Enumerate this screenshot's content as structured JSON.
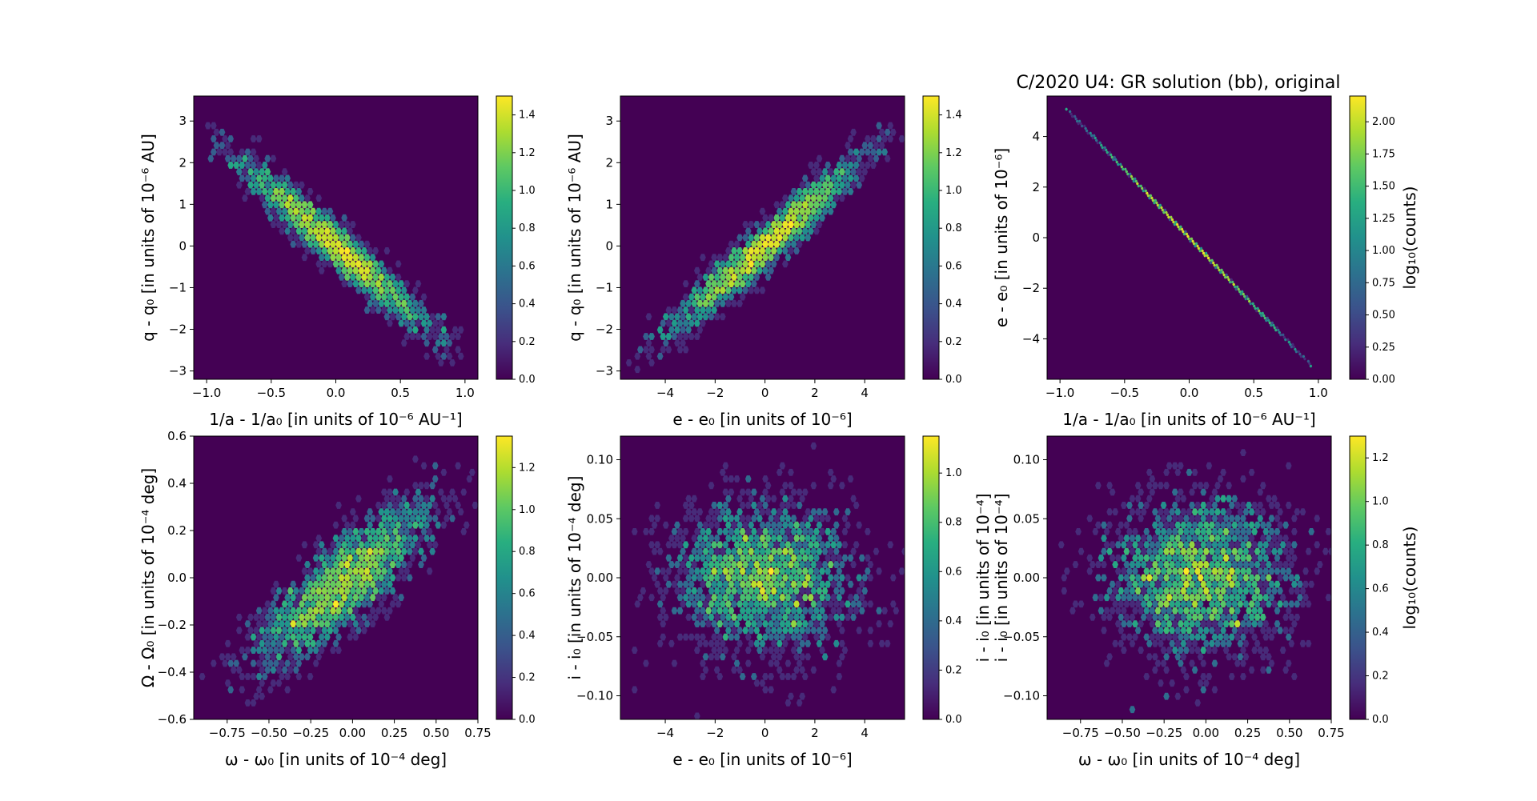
{
  "figure_title": "C/2020 U4: GR solution (bb), original",
  "colors": {
    "background": "#440154",
    "frame": "#000000"
  },
  "chart_data": [
    {
      "type": "heatmap",
      "variant": "hexbin",
      "xlabel": "1/a - 1/a₀ [in units of 10⁻⁶ AU⁻¹]",
      "ylabel": "q - q₀ [in units of 10⁻⁶ AU]",
      "xlim": [
        -1.1,
        1.1
      ],
      "ylim": [
        -3.2,
        3.6
      ],
      "xticks": [
        "−1.0",
        "−0.5",
        "0.0",
        "0.5",
        "1.0"
      ],
      "xtick_values": [
        -1.0,
        -0.5,
        0.0,
        0.5,
        1.0
      ],
      "yticks": [
        "−3",
        "−2",
        "−1",
        "0",
        "1",
        "2",
        "3"
      ],
      "ytick_values": [
        -3,
        -2,
        -1,
        0,
        1,
        2,
        3
      ],
      "colorbar": {
        "min": 0,
        "max": 1.5,
        "label": "",
        "ticks": [
          "0.0",
          "0.2",
          "0.4",
          "0.6",
          "0.8",
          "1.0",
          "1.2",
          "1.4"
        ],
        "tick_values": [
          0,
          0.2,
          0.4,
          0.6,
          0.8,
          1.0,
          1.2,
          1.4
        ]
      },
      "distribution": {
        "shape": "gaussian",
        "center": [
          0,
          0
        ],
        "sigma": [
          0.36,
          1.0
        ],
        "correlation": -0.96,
        "points": 2200,
        "spread_x": 1.0,
        "spread_y": 3.0,
        "seed": 11
      }
    },
    {
      "type": "heatmap",
      "variant": "hexbin",
      "xlabel": "e - e₀ [in units of 10⁻⁶]",
      "ylabel": "q - q₀ [in units of 10⁻⁶ AU]",
      "xlim": [
        -5.8,
        5.6
      ],
      "ylim": [
        -3.2,
        3.6
      ],
      "xticks": [
        "−4",
        "−2",
        "0",
        "2",
        "4"
      ],
      "xtick_values": [
        -4,
        -2,
        0,
        2,
        4
      ],
      "yticks": [
        "−3",
        "−2",
        "−1",
        "0",
        "1",
        "2",
        "3"
      ],
      "ytick_values": [
        -3,
        -2,
        -1,
        0,
        1,
        2,
        3
      ],
      "colorbar": {
        "min": 0,
        "max": 1.5,
        "label": "",
        "ticks": [
          "0.0",
          "0.2",
          "0.4",
          "0.6",
          "0.8",
          "1.0",
          "1.2",
          "1.4"
        ],
        "tick_values": [
          0,
          0.2,
          0.4,
          0.6,
          0.8,
          1.0,
          1.2,
          1.4
        ]
      },
      "distribution": {
        "shape": "gaussian",
        "center": [
          0,
          0
        ],
        "sigma": [
          1.85,
          1.0
        ],
        "correlation": 0.96,
        "points": 2200,
        "spread_x": 5.5,
        "spread_y": 3.0,
        "seed": 23
      }
    },
    {
      "type": "heatmap",
      "variant": "hexbin",
      "title": "C/2020 U4: GR solution (bb), original",
      "xlabel": "1/a - 1/a₀ [in units of 10⁻⁶ AU⁻¹]",
      "ylabel": "e - e₀ [in units of 10⁻⁶]",
      "xlim": [
        -1.1,
        1.1
      ],
      "ylim": [
        -5.6,
        5.6
      ],
      "xticks": [
        "−1.0",
        "−0.5",
        "0.0",
        "0.5",
        "1.0"
      ],
      "xtick_values": [
        -1.0,
        -0.5,
        0.0,
        0.5,
        1.0
      ],
      "yticks": [
        "−4",
        "−2",
        "0",
        "2",
        "4"
      ],
      "ytick_values": [
        -4,
        -2,
        0,
        2,
        4
      ],
      "colorbar": {
        "min": 0,
        "max": 2.2,
        "label": "log₁₀(counts)",
        "ticks": [
          "0.00",
          "0.25",
          "0.50",
          "0.75",
          "1.00",
          "1.25",
          "1.50",
          "1.75",
          "2.00"
        ],
        "tick_values": [
          0,
          0.25,
          0.5,
          0.75,
          1.0,
          1.25,
          1.5,
          1.75,
          2.0
        ]
      },
      "distribution": {
        "shape": "line",
        "from": [
          -0.95,
          5.1
        ],
        "to": [
          0.95,
          -5.1
        ],
        "center_sigma": 0.38,
        "points": 2200,
        "seed": 37
      }
    },
    {
      "type": "heatmap",
      "variant": "hexbin",
      "xlabel": "ω - ω₀ [in units of 10⁻⁴ deg]",
      "ylabel": "Ω - Ω₀ [in units of 10⁻⁴ deg]",
      "xlim": [
        -0.95,
        0.75
      ],
      "ylim": [
        -0.6,
        0.6
      ],
      "xticks": [
        "−0.75",
        "−0.50",
        "−0.25",
        "0.00",
        "0.25",
        "0.50",
        "0.75"
      ],
      "xtick_values": [
        -0.75,
        -0.5,
        -0.25,
        0,
        0.25,
        0.5,
        0.75
      ],
      "yticks": [
        "−0.6",
        "−0.4",
        "−0.2",
        "0.0",
        "0.2",
        "0.4",
        "0.6"
      ],
      "ytick_values": [
        -0.6,
        -0.4,
        -0.2,
        0.0,
        0.2,
        0.4,
        0.6
      ],
      "colorbar": {
        "min": 0,
        "max": 1.35,
        "label": "",
        "ticks": [
          "0.0",
          "0.2",
          "0.4",
          "0.6",
          "0.8",
          "1.0",
          "1.2"
        ],
        "tick_values": [
          0,
          0.2,
          0.4,
          0.6,
          0.8,
          1.0,
          1.2
        ]
      },
      "distribution": {
        "shape": "gaussian",
        "center": [
          -0.05,
          -0.02
        ],
        "sigma": [
          0.26,
          0.17
        ],
        "correlation": 0.82,
        "points": 2200,
        "spread_x": 0.9,
        "spread_y": 0.6,
        "seed": 41
      }
    },
    {
      "type": "heatmap",
      "variant": "hexbin",
      "xlabel": "e - e₀ [in units of 10⁻⁶]",
      "ylabel": "i - i₀ [in units of 10⁻⁴ deg]",
      "xlim": [
        -5.8,
        5.6
      ],
      "ylim": [
        -0.12,
        0.12
      ],
      "xticks": [
        "−4",
        "−2",
        "0",
        "2",
        "4"
      ],
      "xtick_values": [
        -4,
        -2,
        0,
        2,
        4
      ],
      "yticks": [
        "−0.10",
        "−0.05",
        "0.00",
        "0.05",
        "0.10"
      ],
      "ytick_values": [
        -0.1,
        -0.05,
        0.0,
        0.05,
        0.1
      ],
      "colorbar": {
        "min": 0,
        "max": 1.15,
        "label": "i - i₀ [in units of 10⁻⁴]",
        "ticks": [
          "0.0",
          "0.2",
          "0.4",
          "0.6",
          "0.8",
          "1.0"
        ],
        "tick_values": [
          0,
          0.2,
          0.4,
          0.6,
          0.8,
          1.0
        ]
      },
      "distribution": {
        "shape": "gaussian",
        "center": [
          0,
          0
        ],
        "sigma": [
          1.85,
          0.033
        ],
        "correlation": 0.0,
        "points": 2200,
        "spread_x": 5.6,
        "spread_y": 0.12,
        "seed": 53
      }
    },
    {
      "type": "heatmap",
      "variant": "hexbin",
      "xlabel": "ω - ω₀ [in units of 10⁻⁴ deg]",
      "ylabel": "i - i₀ [in units of 10⁻⁴]",
      "xlim": [
        -0.95,
        0.75
      ],
      "ylim": [
        -0.12,
        0.12
      ],
      "xticks": [
        "−0.75",
        "−0.50",
        "−0.25",
        "0.00",
        "0.25",
        "0.50",
        "0.75"
      ],
      "xtick_values": [
        -0.75,
        -0.5,
        -0.25,
        0,
        0.25,
        0.5,
        0.75
      ],
      "yticks": [
        "−0.10",
        "−0.05",
        "0.00",
        "0.05",
        "0.10"
      ],
      "ytick_values": [
        -0.1,
        -0.05,
        0.0,
        0.05,
        0.1
      ],
      "colorbar": {
        "min": 0,
        "max": 1.3,
        "label": "log₁₀(counts)",
        "ticks": [
          "0.0",
          "0.2",
          "0.4",
          "0.6",
          "0.8",
          "1.0",
          "1.2"
        ],
        "tick_values": [
          0,
          0.2,
          0.4,
          0.6,
          0.8,
          1.0,
          1.2
        ]
      },
      "distribution": {
        "shape": "gaussian",
        "center": [
          -0.03,
          0
        ],
        "sigma": [
          0.27,
          0.033
        ],
        "correlation": 0.0,
        "points": 2200,
        "spread_x": 0.85,
        "spread_y": 0.12,
        "seed": 67
      }
    }
  ]
}
